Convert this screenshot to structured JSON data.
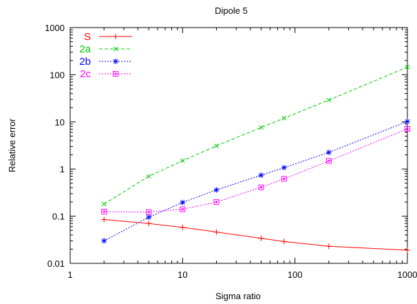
{
  "chart_data": {
    "type": "line",
    "title": "Dipole 5",
    "xlabel": "Sigma ratio",
    "ylabel": "Relative error",
    "xscale": "log",
    "yscale": "log",
    "xlim": [
      1,
      1000
    ],
    "ylim": [
      0.01,
      1000
    ],
    "xticks": [
      "1",
      "10",
      "100",
      "1000"
    ],
    "yticks": [
      "0.01",
      "0.1",
      "1",
      "10",
      "100",
      "1000"
    ],
    "grid": false,
    "legend_position": "top-left",
    "series": [
      {
        "name": "S",
        "color": "#ff0000",
        "dash": "solid",
        "marker": "plus",
        "x": [
          2,
          5,
          10,
          20,
          50,
          80,
          200,
          1000
        ],
        "y": [
          0.085,
          0.07,
          0.058,
          0.046,
          0.034,
          0.029,
          0.023,
          0.019
        ]
      },
      {
        "name": "2a",
        "color": "#00cc00",
        "dash": "dashed",
        "marker": "cross",
        "x": [
          2,
          5,
          10,
          20,
          50,
          80,
          200,
          1000
        ],
        "y": [
          0.18,
          0.7,
          1.5,
          3.1,
          7.6,
          12.0,
          29.0,
          145.0
        ]
      },
      {
        "name": "2b",
        "color": "#0000ff",
        "dash": "dotted",
        "marker": "star",
        "x": [
          2,
          5,
          10,
          20,
          50,
          80,
          200,
          1000
        ],
        "y": [
          0.03,
          0.095,
          0.195,
          0.36,
          0.74,
          1.07,
          2.25,
          10.2
        ]
      },
      {
        "name": "2c",
        "color": "#ff00ff",
        "dash": "dotted",
        "marker": "square",
        "x": [
          2,
          5,
          10,
          20,
          50,
          80,
          200,
          1000
        ],
        "y": [
          0.125,
          0.122,
          0.14,
          0.2,
          0.41,
          0.62,
          1.48,
          7.1
        ]
      }
    ]
  }
}
